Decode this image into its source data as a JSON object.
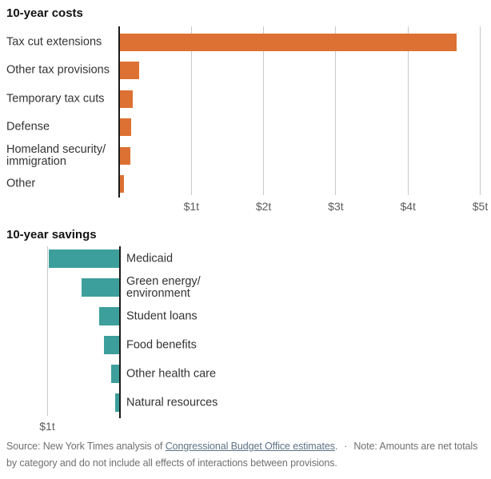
{
  "style": {
    "accent_orange": "#dd7133",
    "accent_teal": "#3d9f9b",
    "axis_color": "#1a1a1a",
    "gridline_color": "#c8c8c8",
    "text_dark": "#121212",
    "text_label": "#333333",
    "text_tick": "#5c5c5c",
    "text_footer": "#707070",
    "link_color": "#5d7285"
  },
  "chart_data": [
    {
      "type": "bar",
      "orientation": "horizontal",
      "title": "10-year costs",
      "categories": [
        "Tax cut extensions",
        "Other tax provisions",
        "Temporary tax cuts",
        "Defense",
        "Homeland security/\nimmigration",
        "Other"
      ],
      "values": [
        4.66,
        0.27,
        0.18,
        0.16,
        0.14,
        0.05
      ],
      "unit": "trillions of dollars",
      "xlim": [
        0,
        5.15
      ],
      "x_tick_values": [
        1,
        2,
        3,
        4,
        5
      ],
      "x_tick_labels": [
        "$1t",
        "$2t",
        "$3t",
        "$4t",
        "$5t"
      ],
      "bar_color": "#dd7133",
      "bars_direction": "right",
      "labels_side": "left",
      "grid": true,
      "legend": false
    },
    {
      "type": "bar",
      "orientation": "horizontal",
      "title": "10-year savings",
      "categories": [
        "Medicaid",
        "Green energy/\nenvironment",
        "Student loans",
        "Food benefits",
        "Other health care",
        "Natural resources"
      ],
      "values": [
        0.97,
        0.52,
        0.28,
        0.21,
        0.11,
        0.05
      ],
      "unit": "trillions of dollars",
      "xlim": [
        0,
        1.1
      ],
      "x_tick_values": [
        1
      ],
      "x_tick_labels": [
        "$1t"
      ],
      "bar_color": "#3d9f9b",
      "bars_direction": "left",
      "labels_side": "right",
      "grid": true,
      "legend": false
    }
  ],
  "footer": {
    "source_prefix": "Source: New York Times analysis of ",
    "source_link": "Congressional Budget Office estimates",
    "source_suffix": ".",
    "separator": "·",
    "note": "Note: Amounts are net totals by category and do not include all effects of interactions between provisions."
  }
}
